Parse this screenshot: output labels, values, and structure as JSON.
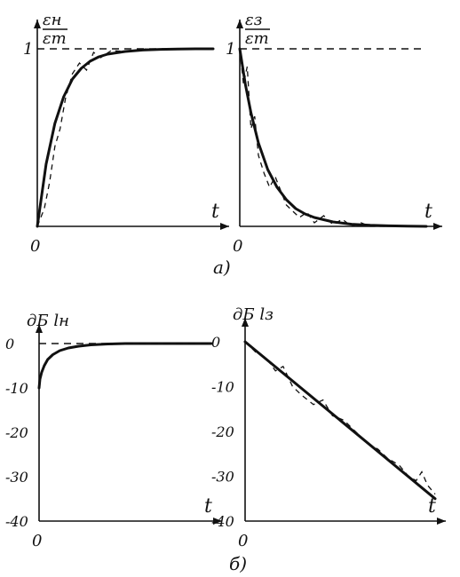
{
  "panel_labels": {
    "a": "а)",
    "b": "б)"
  },
  "chart_data": [
    {
      "type": "line",
      "y_label_top": "εн",
      "y_label_bottom": "εт",
      "x_label": "t",
      "origin_label": "0",
      "y_ticks": [
        "1"
      ],
      "grid": false,
      "xlim": [
        0,
        10
      ],
      "ylim": [
        0,
        1.1
      ],
      "series": [
        {
          "style": "solid",
          "x": [
            0,
            0.5,
            1,
            1.5,
            2,
            2.5,
            3,
            3.5,
            4,
            5,
            6,
            7,
            8,
            9,
            10
          ],
          "y": [
            0,
            0.35,
            0.58,
            0.73,
            0.83,
            0.89,
            0.93,
            0.955,
            0.97,
            0.985,
            0.993,
            0.997,
            0.999,
            1.0,
            1.0
          ]
        },
        {
          "style": "dashed",
          "x": [
            0,
            0.4,
            0.7,
            1.0,
            1.3,
            1.6,
            2.0,
            2.4,
            2.8,
            3.2,
            3.6,
            4.2,
            5,
            6,
            7,
            8,
            9,
            10
          ],
          "y": [
            0,
            0.1,
            0.25,
            0.45,
            0.55,
            0.72,
            0.86,
            0.92,
            0.88,
            0.98,
            0.95,
            0.99,
            0.985,
            1.0,
            0.995,
            1.0,
            1.0,
            1.0
          ]
        },
        {
          "style": "reference",
          "x": [
            0,
            10
          ],
          "y": [
            1,
            1
          ]
        }
      ]
    },
    {
      "type": "line",
      "y_label_top": "εз",
      "y_label_bottom": "εт",
      "x_label": "t",
      "origin_label": "0",
      "y_ticks": [
        "1"
      ],
      "grid": false,
      "xlim": [
        0,
        10
      ],
      "ylim": [
        0,
        1.1
      ],
      "series": [
        {
          "style": "solid",
          "x": [
            0,
            0.3,
            0.6,
            1,
            1.5,
            2,
            2.5,
            3,
            3.5,
            4,
            5,
            6,
            7,
            8,
            9,
            10
          ],
          "y": [
            1,
            0.8,
            0.64,
            0.47,
            0.32,
            0.22,
            0.15,
            0.1,
            0.07,
            0.05,
            0.025,
            0.012,
            0.006,
            0.003,
            0.001,
            0
          ]
        },
        {
          "style": "dashed",
          "x": [
            0,
            0.2,
            0.4,
            0.6,
            0.8,
            1.0,
            1.3,
            1.6,
            1.9,
            2.2,
            2.5,
            2.8,
            3.2,
            3.6,
            4.0,
            4.5,
            5,
            5.5,
            6,
            6.5,
            7,
            8
          ],
          "y": [
            1,
            0.8,
            0.9,
            0.55,
            0.62,
            0.4,
            0.3,
            0.22,
            0.28,
            0.2,
            0.12,
            0.09,
            0.05,
            0.08,
            0.02,
            0.06,
            0.01,
            0.04,
            0.0,
            0.02,
            0.0,
            0.0
          ]
        },
        {
          "style": "reference",
          "x": [
            0,
            10
          ],
          "y": [
            1,
            1
          ]
        }
      ]
    },
    {
      "type": "line",
      "y_label": "дБ lн",
      "x_label": "t",
      "origin_label": "0",
      "y_ticks": [
        "0",
        "-10",
        "-20",
        "-30",
        "-40"
      ],
      "grid": false,
      "xlim": [
        0,
        10
      ],
      "ylim": [
        -40,
        2
      ],
      "series": [
        {
          "style": "solid",
          "x": [
            0,
            0.05,
            0.15,
            0.3,
            0.5,
            0.8,
            1.2,
            1.7,
            2.3,
            3,
            4,
            5,
            6,
            7,
            8,
            9,
            10
          ],
          "y": [
            -10,
            -8,
            -6.5,
            -5,
            -3.6,
            -2.5,
            -1.6,
            -1,
            -0.6,
            -0.3,
            -0.1,
            0,
            0,
            0,
            0,
            0,
            0
          ]
        },
        {
          "style": "reference",
          "x": [
            0,
            10
          ],
          "y": [
            0,
            0
          ]
        }
      ]
    },
    {
      "type": "line",
      "y_label": "дБ lз",
      "x_label": "t",
      "origin_label": "0",
      "y_ticks": [
        "0",
        "-10",
        "-20",
        "-30",
        "-40"
      ],
      "grid": false,
      "xlim": [
        0,
        10
      ],
      "ylim": [
        -40,
        2
      ],
      "series": [
        {
          "style": "solid",
          "x": [
            0,
            10
          ],
          "y": [
            0,
            -35
          ]
        },
        {
          "style": "dashed",
          "x": [
            0,
            0.6,
            1.1,
            1.6,
            2.0,
            2.5,
            3.0,
            3.6,
            4.1,
            4.6,
            5.2,
            5.8,
            6.4,
            7.0,
            7.5,
            8.1,
            8.6,
            9.0,
            9.3,
            9.6,
            10
          ],
          "y": [
            0,
            -2.5,
            -3.5,
            -6.5,
            -5.5,
            -10,
            -12,
            -14,
            -13,
            -16.5,
            -17.5,
            -20,
            -22.5,
            -24,
            -26,
            -27.5,
            -30,
            -31,
            -29,
            -32,
            -34
          ]
        }
      ]
    }
  ]
}
